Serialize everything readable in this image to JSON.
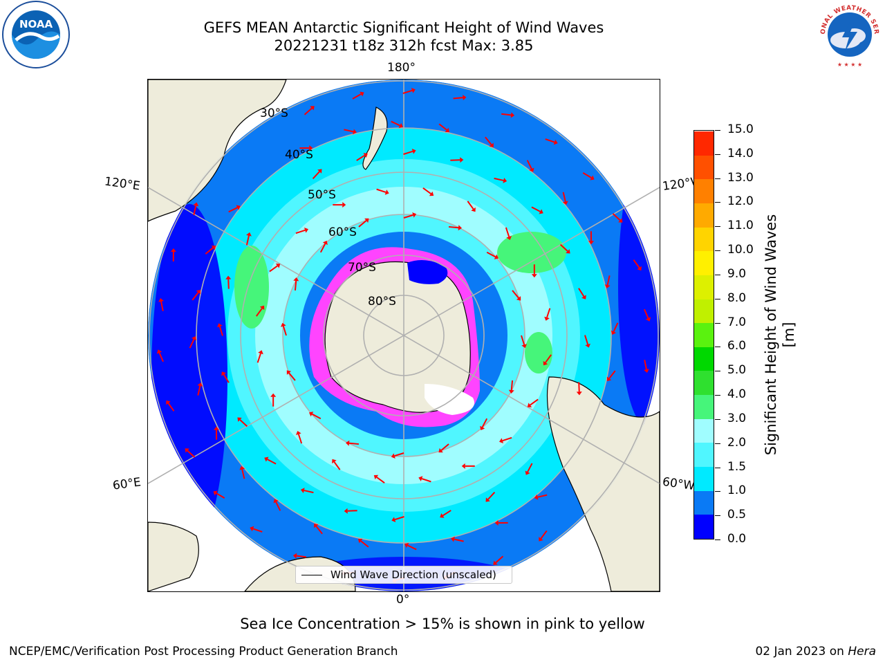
{
  "header": {
    "title_line1": "GEFS MEAN Antarctic Significant Height of Wind Waves",
    "title_line2": "20221231 t18z 312h fcst   Max: 3.85"
  },
  "map": {
    "projection": "south-polar-stereographic",
    "longitude_labels": {
      "top": "180°",
      "bottom": "0°",
      "upper_left": "120°E",
      "upper_right": "120°W",
      "lower_left": "60°E",
      "lower_right": "60°W"
    },
    "latitude_labels": [
      "30°S",
      "40°S",
      "50°S",
      "60°S",
      "70°S",
      "80°S"
    ],
    "legend": "Wind Wave Direction (unscaled)",
    "colors": {
      "land": "#eeecdb",
      "arrows": "#ff0000",
      "sea_ice": "#ff44ff",
      "grid": "#b0b0b0"
    }
  },
  "colorbar": {
    "label": "Significant Height of Wind Waves [m]",
    "ticks": [
      "0.0",
      "0.5",
      "1.0",
      "1.5",
      "2.0",
      "3.0",
      "4.0",
      "5.0",
      "6.0",
      "7.0",
      "8.0",
      "9.0",
      "10.0",
      "11.0",
      "12.0",
      "13.0",
      "14.0",
      "15.0"
    ],
    "colors": [
      "#0000ff",
      "#0a7af5",
      "#00eaff",
      "#50f6ff",
      "#a0fdff",
      "#46f57a",
      "#2fe02f",
      "#00d800",
      "#5af20f",
      "#c0f000",
      "#ddf000",
      "#fff000",
      "#ffd400",
      "#ffaa00",
      "#ff8000",
      "#ff5000",
      "#ff2800"
    ]
  },
  "footer": {
    "note": "Sea Ice Concentration > 15% is shown in pink to yellow",
    "left": "NCEP/EMC/Verification Post Processing Product Generation Branch",
    "right_date": "02 Jan 2023 on ",
    "right_machine": "Hera"
  },
  "logos": {
    "noaa_text": "NOAA",
    "nws_text": "NATIONAL WEATHER SERVICE"
  }
}
